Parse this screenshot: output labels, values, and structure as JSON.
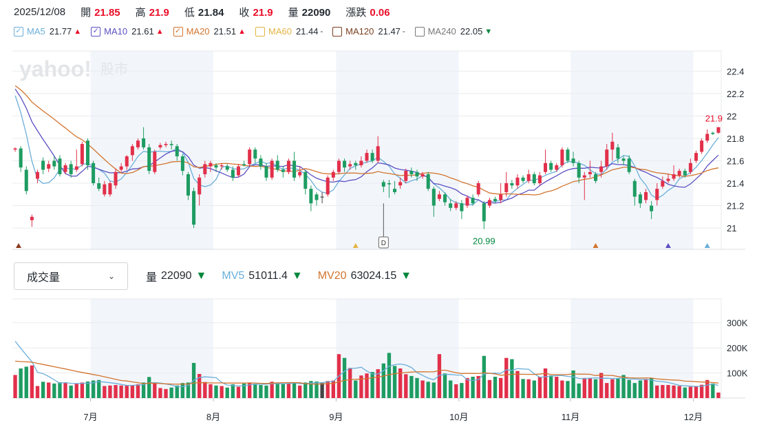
{
  "header": {
    "date": "2025/12/08",
    "open": {
      "label": "開",
      "value": "21.85"
    },
    "high": {
      "label": "高",
      "value": "21.9"
    },
    "low": {
      "label": "低",
      "value": "21.84"
    },
    "close": {
      "label": "收",
      "value": "21.9"
    },
    "volume": {
      "label": "量",
      "value": "22090"
    },
    "change": {
      "label": "漲跌",
      "value": "0.06"
    }
  },
  "legend": [
    {
      "name": "MA5",
      "value": "21.77",
      "trend": "up",
      "color": "#6aaed9",
      "checked": true
    },
    {
      "name": "MA10",
      "value": "21.61",
      "trend": "up",
      "color": "#5b4fc2",
      "checked": true
    },
    {
      "name": "MA20",
      "value": "21.51",
      "trend": "up",
      "color": "#d2742e",
      "checked": true
    },
    {
      "name": "MA60",
      "value": "21.44",
      "trend": "flat",
      "color": "#e3b544",
      "checked": false
    },
    {
      "name": "MA120",
      "value": "21.47",
      "trend": "flat",
      "color": "#7a3e1d",
      "checked": false
    },
    {
      "name": "MA240",
      "value": "22.05",
      "trend": "down",
      "color": "#777777",
      "checked": false
    }
  ],
  "watermark": {
    "brand": "yahoo!",
    "sub": "股市"
  },
  "volume_panel": {
    "selector_label": "成交量",
    "vol": {
      "name": "量",
      "value": "22090",
      "trend": "down"
    },
    "mv5": {
      "name": "MV5",
      "value": "51011.4",
      "trend": "down",
      "color": "#6aaed9"
    },
    "mv20": {
      "name": "MV20",
      "value": "63024.15",
      "trend": "down",
      "color": "#d2742e"
    }
  },
  "chart_data": [
    {
      "type": "candlestick",
      "y_ticks": [
        "22.4",
        "22.2",
        "22",
        "21.8",
        "21.6",
        "21.4",
        "21.2",
        "21"
      ],
      "ylim": [
        20.81,
        22.58
      ],
      "x_ticks": [
        "7月",
        "8月",
        "9月",
        "10月",
        "11月",
        "12月"
      ],
      "annotations": [
        {
          "text": "21.9",
          "kind": "last-price",
          "color": "#eb0f29"
        },
        {
          "text": "20.99",
          "kind": "period-low",
          "color": "#00873c"
        },
        {
          "text": "D",
          "kind": "dividend-marker"
        }
      ],
      "candles": [
        [
          21.7,
          21.71,
          21.68,
          21.72
        ],
        [
          21.71,
          21.54,
          21.5,
          21.73
        ],
        [
          21.52,
          21.33,
          21.3,
          21.55
        ],
        [
          21.07,
          21.1,
          21.01,
          21.12
        ],
        [
          21.44,
          21.5,
          21.4,
          21.52
        ],
        [
          21.6,
          21.52,
          21.48,
          21.63
        ],
        [
          21.53,
          21.57,
          21.5,
          21.6
        ],
        [
          21.6,
          21.55,
          21.52,
          21.64
        ],
        [
          21.62,
          21.48,
          21.46,
          21.65
        ],
        [
          21.5,
          21.56,
          21.48,
          21.58
        ],
        [
          21.57,
          21.48,
          21.45,
          21.6
        ],
        [
          21.52,
          21.55,
          21.5,
          21.7
        ],
        [
          21.57,
          21.75,
          21.55,
          21.77
        ],
        [
          21.78,
          21.56,
          21.52,
          21.8
        ],
        [
          21.58,
          21.4,
          21.38,
          21.6
        ],
        [
          21.4,
          21.35,
          21.33,
          21.45
        ],
        [
          21.3,
          21.39,
          21.28,
          21.42
        ],
        [
          21.3,
          21.4,
          21.28,
          21.42
        ],
        [
          21.38,
          21.5,
          21.35,
          21.53
        ],
        [
          21.52,
          21.55,
          21.5,
          21.58
        ],
        [
          21.55,
          21.64,
          21.52,
          21.65
        ],
        [
          21.65,
          21.73,
          21.6,
          21.75
        ],
        [
          21.72,
          21.78,
          21.7,
          21.8
        ],
        [
          21.8,
          21.72,
          21.7,
          21.9
        ],
        [
          21.72,
          21.51,
          21.48,
          21.75
        ],
        [
          21.5,
          21.68,
          21.48,
          21.7
        ],
        [
          21.72,
          21.74,
          21.7,
          21.76
        ],
        [
          21.74,
          21.75,
          21.72,
          21.77
        ],
        [
          21.75,
          21.74,
          21.7,
          21.78
        ],
        [
          21.73,
          21.64,
          21.6,
          21.75
        ],
        [
          21.64,
          21.51,
          21.47,
          21.66
        ],
        [
          21.48,
          21.29,
          21.25,
          21.5
        ],
        [
          21.33,
          21.03,
          21.0,
          21.36
        ],
        [
          21.3,
          21.45,
          21.2,
          21.48
        ],
        [
          21.48,
          21.57,
          21.45,
          21.6
        ],
        [
          21.55,
          21.58,
          21.5,
          21.6
        ],
        [
          21.56,
          21.54,
          21.5,
          21.58
        ],
        [
          21.55,
          21.56,
          21.52,
          21.58
        ],
        [
          21.55,
          21.52,
          21.5,
          21.57
        ],
        [
          21.52,
          21.45,
          21.42,
          21.55
        ],
        [
          21.47,
          21.55,
          21.45,
          21.57
        ],
        [
          21.57,
          21.56,
          21.55,
          21.6
        ],
        [
          21.57,
          21.7,
          21.55,
          21.72
        ],
        [
          21.7,
          21.62,
          21.58,
          21.72
        ],
        [
          21.62,
          21.55,
          21.52,
          21.65
        ],
        [
          21.55,
          21.45,
          21.42,
          21.58
        ],
        [
          21.45,
          21.6,
          21.43,
          21.62
        ],
        [
          21.6,
          21.52,
          21.5,
          21.65
        ],
        [
          21.52,
          21.5,
          21.45,
          21.55
        ],
        [
          21.5,
          21.6,
          21.48,
          21.62
        ],
        [
          21.6,
          21.45,
          21.42,
          21.68
        ],
        [
          21.47,
          21.5,
          21.45,
          21.55
        ],
        [
          21.5,
          21.35,
          21.3,
          21.52
        ],
        [
          21.35,
          21.22,
          21.15,
          21.38
        ],
        [
          21.3,
          21.25,
          21.2,
          21.32
        ],
        [
          21.28,
          21.28,
          21.22,
          21.32
        ],
        [
          21.3,
          21.45,
          21.28,
          21.47
        ],
        [
          21.45,
          21.5,
          21.42,
          21.52
        ],
        [
          21.5,
          21.6,
          21.48,
          21.62
        ],
        [
          21.6,
          21.54,
          21.5,
          21.62
        ],
        [
          21.55,
          21.57,
          21.52,
          21.6
        ],
        [
          21.58,
          21.56,
          21.52,
          21.6
        ],
        [
          21.56,
          21.6,
          21.54,
          21.64
        ],
        [
          21.6,
          21.67,
          21.58,
          21.7
        ],
        [
          21.67,
          21.6,
          21.58,
          21.7
        ],
        [
          21.6,
          21.73,
          21.58,
          21.82
        ],
        [
          21.41,
          21.37,
          21.32,
          21.43
        ],
        [
          21.4,
          21.39,
          21.27,
          21.43
        ],
        [
          21.35,
          21.32,
          21.3,
          21.42
        ],
        [
          21.38,
          21.41,
          21.35,
          21.45
        ],
        [
          21.42,
          21.51,
          21.4,
          21.53
        ],
        [
          21.51,
          21.48,
          21.45,
          21.54
        ],
        [
          21.5,
          21.46,
          21.42,
          21.52
        ],
        [
          21.46,
          21.48,
          21.44,
          21.5
        ],
        [
          21.48,
          21.35,
          21.33,
          21.5
        ],
        [
          21.35,
          21.2,
          21.1,
          21.37
        ],
        [
          21.26,
          21.3,
          21.24,
          21.33
        ],
        [
          21.3,
          21.23,
          21.2,
          21.32
        ],
        [
          21.22,
          21.18,
          21.15,
          21.26
        ],
        [
          21.18,
          21.22,
          21.16,
          21.24
        ],
        [
          21.22,
          21.15,
          21.08,
          21.25
        ],
        [
          21.2,
          21.27,
          21.18,
          21.29
        ],
        [
          21.27,
          21.22,
          21.2,
          21.3
        ],
        [
          21.3,
          21.4,
          21.28,
          21.42
        ],
        [
          21.22,
          21.06,
          20.99,
          21.24
        ],
        [
          21.2,
          21.25,
          21.18,
          21.27
        ],
        [
          21.26,
          21.24,
          21.22,
          21.28
        ],
        [
          21.25,
          21.3,
          21.22,
          21.4
        ],
        [
          21.32,
          21.4,
          21.28,
          21.5
        ],
        [
          21.4,
          21.38,
          21.35,
          21.43
        ],
        [
          21.38,
          21.45,
          21.35,
          21.48
        ],
        [
          21.45,
          21.42,
          21.4,
          21.47
        ],
        [
          21.42,
          21.48,
          21.4,
          21.52
        ],
        [
          21.48,
          21.4,
          21.38,
          21.5
        ],
        [
          21.4,
          21.47,
          21.38,
          21.5
        ],
        [
          21.5,
          21.58,
          21.48,
          21.7
        ],
        [
          21.58,
          21.52,
          21.5,
          21.6
        ],
        [
          21.52,
          21.56,
          21.5,
          21.58
        ],
        [
          21.56,
          21.7,
          21.54,
          21.72
        ],
        [
          21.7,
          21.6,
          21.58,
          21.72
        ],
        [
          21.62,
          21.58,
          21.55,
          21.68
        ],
        [
          21.58,
          21.45,
          21.4,
          21.6
        ],
        [
          21.45,
          21.47,
          21.25,
          21.5
        ],
        [
          21.48,
          21.5,
          21.45,
          21.6
        ],
        [
          21.48,
          21.42,
          21.4,
          21.5
        ],
        [
          21.5,
          21.55,
          21.45,
          21.6
        ],
        [
          21.55,
          21.7,
          21.52,
          21.75
        ],
        [
          21.7,
          21.77,
          21.6,
          21.85
        ],
        [
          21.72,
          21.62,
          21.58,
          21.75
        ],
        [
          21.62,
          21.6,
          21.56,
          21.64
        ],
        [
          21.62,
          21.5,
          21.48,
          21.65
        ],
        [
          21.42,
          21.28,
          21.2,
          21.44
        ],
        [
          21.3,
          21.22,
          21.18,
          21.32
        ],
        [
          21.25,
          21.32,
          21.22,
          21.35
        ],
        [
          21.2,
          21.15,
          21.08,
          21.24
        ],
        [
          21.25,
          21.35,
          21.2,
          21.4
        ],
        [
          21.37,
          21.42,
          21.35,
          21.46
        ],
        [
          21.42,
          21.44,
          21.4,
          21.48
        ],
        [
          21.44,
          21.48,
          21.42,
          21.56
        ],
        [
          21.47,
          21.51,
          21.45,
          21.53
        ],
        [
          21.51,
          21.47,
          21.45,
          21.53
        ],
        [
          21.5,
          21.58,
          21.48,
          21.62
        ],
        [
          21.6,
          21.67,
          21.58,
          21.69
        ],
        [
          21.68,
          21.78,
          21.66,
          21.8
        ],
        [
          21.78,
          21.84,
          21.76,
          21.88
        ],
        [
          21.85,
          21.84,
          21.83,
          21.86
        ],
        [
          21.85,
          21.9,
          21.84,
          21.9
        ]
      ],
      "series": [
        {
          "name": "MA5",
          "color": "#6aaed9"
        },
        {
          "name": "MA10",
          "color": "#5b4fc2"
        },
        {
          "name": "MA20",
          "color": "#d2742e"
        }
      ]
    },
    {
      "type": "bar",
      "y_ticks": [
        "300K",
        "200K",
        "100K"
      ],
      "ylim": [
        0,
        395000
      ],
      "volumes": [
        92000,
        118000,
        125000,
        130000,
        48000,
        65000,
        62000,
        58000,
        63000,
        60000,
        50000,
        58000,
        62000,
        66000,
        70000,
        72000,
        48000,
        50000,
        52000,
        50000,
        52000,
        50000,
        55000,
        62000,
        84000,
        58000,
        40000,
        36000,
        42000,
        50000,
        60000,
        62000,
        140000,
        96000,
        64000,
        55000,
        50000,
        48000,
        42000,
        55000,
        45000,
        58000,
        62000,
        57000,
        52000,
        50000,
        65000,
        62000,
        56000,
        58000,
        60000,
        50000,
        62000,
        68000,
        66000,
        60000,
        68000,
        70000,
        175000,
        160000,
        120000,
        70000,
        90000,
        98000,
        104000,
        115000,
        138000,
        180000,
        128000,
        118000,
        95000,
        88000,
        80000,
        70000,
        65000,
        62000,
        175000,
        98000,
        70000,
        55000,
        60000,
        80000,
        85000,
        88000,
        168000,
        72000,
        85000,
        80000,
        160000,
        155000,
        108000,
        76000,
        75000,
        70000,
        85000,
        118000,
        90000,
        85000,
        70000,
        68000,
        110000,
        58000,
        80000,
        80000,
        75000,
        100000,
        60000,
        75000,
        80000,
        92000,
        72000,
        60000,
        70000,
        76000,
        80000,
        50000,
        52000,
        52000,
        50000,
        48000,
        42000,
        45000,
        48000,
        53000,
        72000,
        58000,
        22090
      ]
    }
  ]
}
